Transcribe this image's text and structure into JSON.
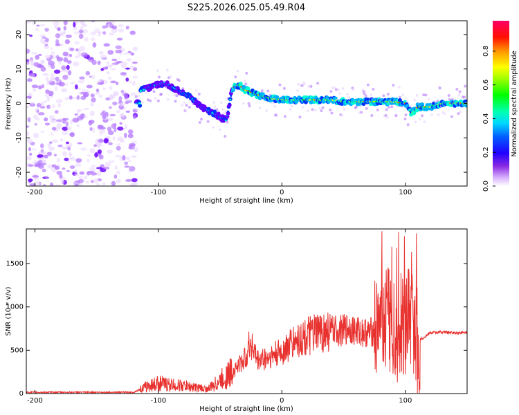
{
  "title": "S225.2026.025.05.49.R04",
  "chart_data": [
    {
      "type": "heatmap",
      "xlabel": "Height of straight line (km)",
      "ylabel": "Frequency (Hz)",
      "xlim": [
        -207,
        150
      ],
      "ylim": [
        -24,
        24
      ],
      "x_ticks": [
        -200,
        -100,
        0,
        100
      ],
      "y_ticks": [
        -20,
        -10,
        0,
        10,
        20
      ],
      "colorbar": {
        "label": "Normalized spectral amplitude",
        "range": [
          0.0,
          0.98
        ],
        "ticks": [
          "0.0",
          "0.2",
          "0.4",
          "0.6",
          "0.8"
        ],
        "colors": [
          "#ffffff",
          "#d9b3ff",
          "#8a2be2",
          "#3f00ff",
          "#0000ff",
          "#00bfff",
          "#00ffd0",
          "#00ff00",
          "#b0ff00",
          "#ffff00",
          "#ff8000",
          "#ff0000",
          "#ff0066"
        ]
      },
      "ridge": {
        "description_points_x_km": [
          -115,
          -105,
          -95,
          -85,
          -75,
          -65,
          -55,
          -45,
          -40,
          -35,
          -30,
          -20,
          -10,
          0,
          10,
          20,
          30,
          40,
          50,
          60,
          70,
          80,
          90,
          100,
          105,
          110,
          120,
          130,
          140,
          150
        ],
        "frequency_hz": [
          3.5,
          5,
          6,
          4,
          2,
          -1,
          -3,
          -5,
          4.5,
          5.5,
          4,
          2.5,
          1.5,
          1,
          1,
          1,
          1,
          1,
          0.5,
          0.5,
          0.5,
          0.5,
          0.5,
          0,
          -3,
          -1,
          -1,
          0,
          0,
          0
        ]
      }
    },
    {
      "type": "line",
      "xlabel": "Height of straight line (km)",
      "ylabel": "SNR (10 * v/v)",
      "xlim": [
        -207,
        150
      ],
      "ylim": [
        0,
        1900
      ],
      "x_ticks": [
        -200,
        -100,
        0,
        100
      ],
      "y_ticks": [
        0,
        500,
        1000,
        1500
      ],
      "color": "#e8322f",
      "x": [
        -207,
        -180,
        -150,
        -120,
        -110,
        -100,
        -90,
        -80,
        -70,
        -60,
        -50,
        -40,
        -30,
        -25,
        -20,
        -10,
        0,
        10,
        20,
        30,
        40,
        50,
        55,
        60,
        70,
        80,
        85,
        90,
        95,
        100,
        105,
        110,
        120,
        130,
        140,
        150
      ],
      "y": [
        15,
        15,
        15,
        15,
        80,
        120,
        100,
        90,
        70,
        50,
        150,
        250,
        400,
        600,
        380,
        420,
        480,
        600,
        650,
        700,
        720,
        730,
        760,
        720,
        700,
        740,
        900,
        800,
        760,
        720,
        900,
        600,
        700,
        710,
        700,
        705
      ]
    }
  ]
}
